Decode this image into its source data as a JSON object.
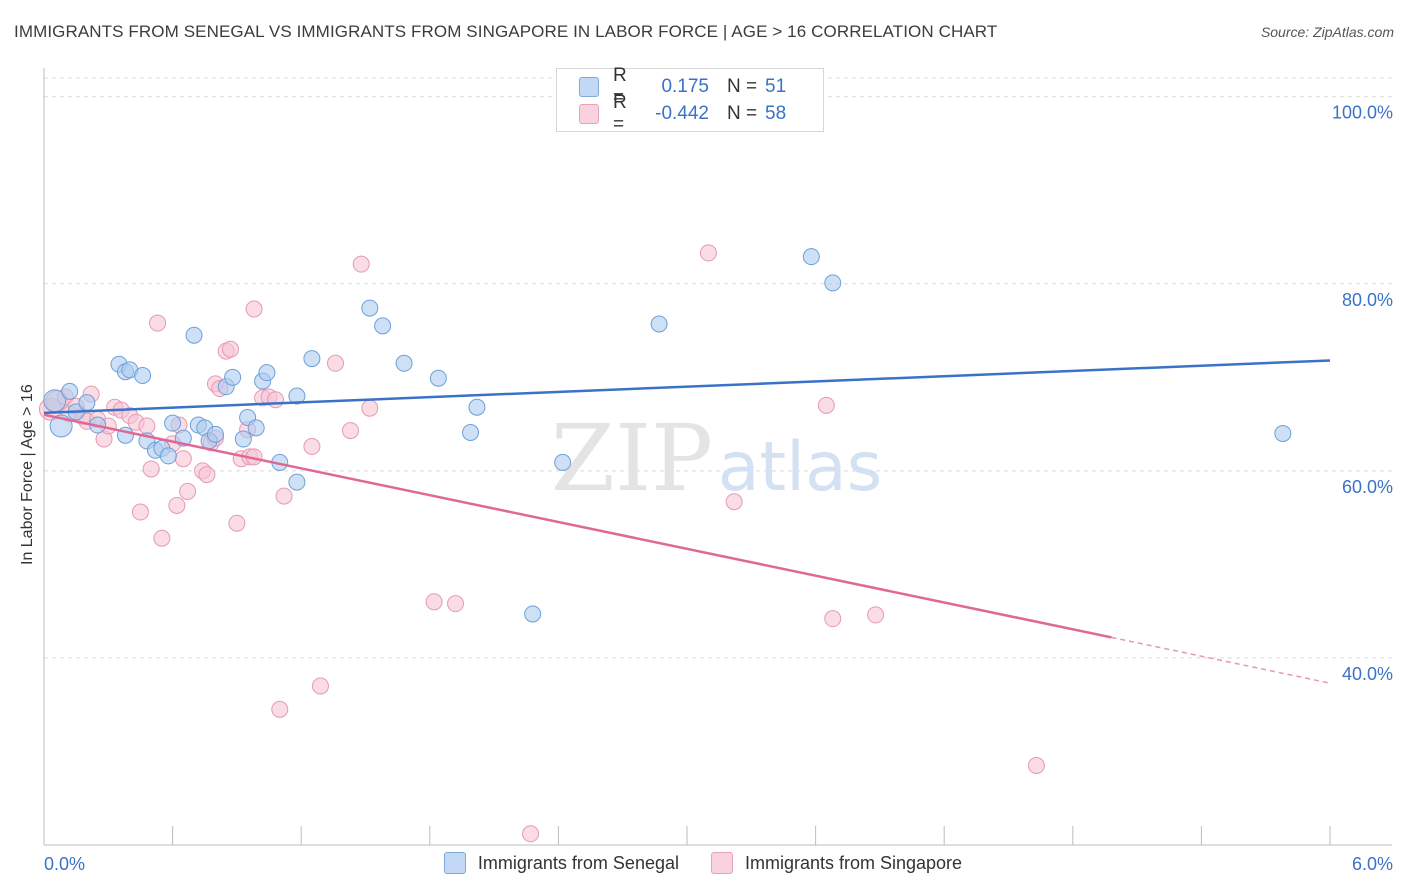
{
  "title": "IMMIGRANTS FROM SENEGAL VS IMMIGRANTS FROM SINGAPORE IN LABOR FORCE | AGE > 16 CORRELATION CHART",
  "source": "Source: ZipAtlas.com",
  "watermark": {
    "zip": "ZIP",
    "atlas": "atlas"
  },
  "legend": {
    "r_label": "R =",
    "n_label": "N =",
    "rows": [
      {
        "r": "0.175",
        "n": "51"
      },
      {
        "r": "-0.442",
        "n": "58"
      }
    ]
  },
  "colors": {
    "senegal_fill": "#aecbf0",
    "senegal_stroke": "#6e9fd8",
    "senegal_line": "#3a72c8",
    "singapore_fill": "#f7c5d4",
    "singapore_stroke": "#e59ab3",
    "singapore_line": "#e06896",
    "tick_text": "#3a72c8",
    "grid": "#d9d9d9"
  },
  "chart_data": {
    "type": "scatter",
    "title": "IMMIGRANTS FROM SENEGAL VS IMMIGRANTS FROM SINGAPORE IN LABOR FORCE | AGE > 16 CORRELATION CHART",
    "xlabel": "",
    "ylabel": "In Labor Force | Age > 16",
    "xlim": [
      0,
      6
    ],
    "ylim": [
      20,
      102
    ],
    "x_tick_labels": [
      "0.0%",
      "6.0%"
    ],
    "y_ticks": [
      40,
      60,
      80,
      100
    ],
    "y_tick_labels": [
      "40.0%",
      "60.0%",
      "80.0%",
      "100.0%"
    ],
    "grid": true,
    "legend_position": "bottom",
    "series": [
      {
        "name": "Immigrants from Senegal",
        "r": 0.175,
        "n": 51,
        "trend": {
          "x": [
            0,
            6
          ],
          "y": [
            66.2,
            71.8
          ]
        },
        "points": [
          {
            "x": 0.05,
            "y": 67.5,
            "s": 2
          },
          {
            "x": 0.08,
            "y": 64.8,
            "s": 2
          },
          {
            "x": 0.12,
            "y": 68.5,
            "s": 1
          },
          {
            "x": 0.15,
            "y": 66.3,
            "s": 1
          },
          {
            "x": 0.2,
            "y": 67.3,
            "s": 1
          },
          {
            "x": 0.25,
            "y": 64.9,
            "s": 1
          },
          {
            "x": 0.35,
            "y": 71.4,
            "s": 1
          },
          {
            "x": 0.38,
            "y": 70.6,
            "s": 1
          },
          {
            "x": 0.4,
            "y": 70.8,
            "s": 1
          },
          {
            "x": 0.46,
            "y": 70.2,
            "s": 1
          },
          {
            "x": 0.38,
            "y": 63.8,
            "s": 1
          },
          {
            "x": 0.48,
            "y": 63.2,
            "s": 1
          },
          {
            "x": 0.52,
            "y": 62.2,
            "s": 1
          },
          {
            "x": 0.55,
            "y": 62.4,
            "s": 1
          },
          {
            "x": 0.58,
            "y": 61.6,
            "s": 1
          },
          {
            "x": 0.6,
            "y": 65.1,
            "s": 1
          },
          {
            "x": 0.65,
            "y": 63.5,
            "s": 1
          },
          {
            "x": 0.7,
            "y": 74.5,
            "s": 1
          },
          {
            "x": 0.72,
            "y": 64.9,
            "s": 1
          },
          {
            "x": 0.75,
            "y": 64.6,
            "s": 1
          },
          {
            "x": 0.77,
            "y": 63.2,
            "s": 1
          },
          {
            "x": 0.8,
            "y": 63.9,
            "s": 1
          },
          {
            "x": 0.85,
            "y": 69.0,
            "s": 1
          },
          {
            "x": 0.88,
            "y": 70.0,
            "s": 1
          },
          {
            "x": 0.93,
            "y": 63.4,
            "s": 1
          },
          {
            "x": 0.95,
            "y": 65.7,
            "s": 1
          },
          {
            "x": 0.99,
            "y": 64.6,
            "s": 1
          },
          {
            "x": 1.02,
            "y": 69.6,
            "s": 1
          },
          {
            "x": 1.04,
            "y": 70.5,
            "s": 1
          },
          {
            "x": 1.1,
            "y": 60.9,
            "s": 1
          },
          {
            "x": 1.18,
            "y": 58.8,
            "s": 1
          },
          {
            "x": 1.18,
            "y": 68.0,
            "s": 1
          },
          {
            "x": 1.25,
            "y": 72.0,
            "s": 1
          },
          {
            "x": 1.52,
            "y": 77.4,
            "s": 1
          },
          {
            "x": 1.58,
            "y": 75.5,
            "s": 1
          },
          {
            "x": 1.68,
            "y": 71.5,
            "s": 1
          },
          {
            "x": 1.84,
            "y": 69.9,
            "s": 1
          },
          {
            "x": 1.99,
            "y": 64.1,
            "s": 1
          },
          {
            "x": 2.02,
            "y": 66.8,
            "s": 1
          },
          {
            "x": 2.28,
            "y": 44.7,
            "s": 1
          },
          {
            "x": 2.42,
            "y": 60.9,
            "s": 1
          },
          {
            "x": 2.87,
            "y": 75.7,
            "s": 1
          },
          {
            "x": 3.58,
            "y": 82.9,
            "s": 1
          },
          {
            "x": 3.68,
            "y": 80.1,
            "s": 1
          },
          {
            "x": 5.78,
            "y": 64.0,
            "s": 1
          }
        ]
      },
      {
        "name": "Immigrants from Singapore",
        "r": -0.442,
        "n": 58,
        "trend": {
          "x": [
            0,
            4.98
          ],
          "y": [
            66.0,
            42.2
          ]
        },
        "trend_dashed": {
          "x": [
            4.98,
            6
          ],
          "y": [
            42.2,
            37.3
          ]
        },
        "points": [
          {
            "x": 0.03,
            "y": 66.6,
            "s": 2
          },
          {
            "x": 0.06,
            "y": 67.4,
            "s": 2
          },
          {
            "x": 0.1,
            "y": 67.9,
            "s": 1
          },
          {
            "x": 0.12,
            "y": 66.1,
            "s": 1
          },
          {
            "x": 0.15,
            "y": 66.9,
            "s": 1
          },
          {
            "x": 0.18,
            "y": 65.8,
            "s": 1
          },
          {
            "x": 0.2,
            "y": 65.3,
            "s": 1
          },
          {
            "x": 0.22,
            "y": 68.2,
            "s": 1
          },
          {
            "x": 0.25,
            "y": 65.5,
            "s": 1
          },
          {
            "x": 0.28,
            "y": 63.4,
            "s": 1
          },
          {
            "x": 0.3,
            "y": 64.8,
            "s": 1
          },
          {
            "x": 0.33,
            "y": 66.8,
            "s": 1
          },
          {
            "x": 0.36,
            "y": 66.5,
            "s": 1
          },
          {
            "x": 0.4,
            "y": 65.9,
            "s": 1
          },
          {
            "x": 0.43,
            "y": 65.2,
            "s": 1
          },
          {
            "x": 0.45,
            "y": 55.6,
            "s": 1
          },
          {
            "x": 0.48,
            "y": 64.8,
            "s": 1
          },
          {
            "x": 0.5,
            "y": 60.2,
            "s": 1
          },
          {
            "x": 0.53,
            "y": 75.8,
            "s": 1
          },
          {
            "x": 0.55,
            "y": 52.8,
            "s": 1
          },
          {
            "x": 0.6,
            "y": 62.9,
            "s": 1
          },
          {
            "x": 0.62,
            "y": 56.3,
            "s": 1
          },
          {
            "x": 0.63,
            "y": 64.9,
            "s": 1
          },
          {
            "x": 0.65,
            "y": 61.3,
            "s": 1
          },
          {
            "x": 0.67,
            "y": 57.8,
            "s": 1
          },
          {
            "x": 0.74,
            "y": 60.0,
            "s": 1
          },
          {
            "x": 0.76,
            "y": 59.6,
            "s": 1
          },
          {
            "x": 0.78,
            "y": 63.0,
            "s": 1
          },
          {
            "x": 0.8,
            "y": 63.5,
            "s": 1
          },
          {
            "x": 0.8,
            "y": 69.3,
            "s": 1
          },
          {
            "x": 0.82,
            "y": 68.8,
            "s": 1
          },
          {
            "x": 0.85,
            "y": 72.8,
            "s": 1
          },
          {
            "x": 0.87,
            "y": 73.0,
            "s": 1
          },
          {
            "x": 0.9,
            "y": 54.4,
            "s": 1
          },
          {
            "x": 0.92,
            "y": 61.3,
            "s": 1
          },
          {
            "x": 0.95,
            "y": 64.4,
            "s": 1
          },
          {
            "x": 0.96,
            "y": 61.5,
            "s": 1
          },
          {
            "x": 0.98,
            "y": 61.5,
            "s": 1
          },
          {
            "x": 0.98,
            "y": 77.3,
            "s": 1
          },
          {
            "x": 1.02,
            "y": 67.8,
            "s": 1
          },
          {
            "x": 1.05,
            "y": 67.9,
            "s": 1
          },
          {
            "x": 1.08,
            "y": 67.6,
            "s": 1
          },
          {
            "x": 1.1,
            "y": 34.5,
            "s": 1
          },
          {
            "x": 1.12,
            "y": 57.3,
            "s": 1
          },
          {
            "x": 1.25,
            "y": 62.6,
            "s": 1
          },
          {
            "x": 1.29,
            "y": 37.0,
            "s": 1
          },
          {
            "x": 1.36,
            "y": 71.5,
            "s": 1
          },
          {
            "x": 1.43,
            "y": 64.3,
            "s": 1
          },
          {
            "x": 1.48,
            "y": 82.1,
            "s": 1
          },
          {
            "x": 1.52,
            "y": 66.7,
            "s": 1
          },
          {
            "x": 1.82,
            "y": 46.0,
            "s": 1
          },
          {
            "x": 1.92,
            "y": 45.8,
            "s": 1
          },
          {
            "x": 2.27,
            "y": 21.2,
            "s": 1
          },
          {
            "x": 3.1,
            "y": 83.3,
            "s": 1
          },
          {
            "x": 3.22,
            "y": 56.7,
            "s": 1
          },
          {
            "x": 3.65,
            "y": 67.0,
            "s": 1
          },
          {
            "x": 3.68,
            "y": 44.2,
            "s": 1
          },
          {
            "x": 3.88,
            "y": 44.6,
            "s": 1
          },
          {
            "x": 4.63,
            "y": 28.5,
            "s": 1
          }
        ]
      }
    ]
  }
}
